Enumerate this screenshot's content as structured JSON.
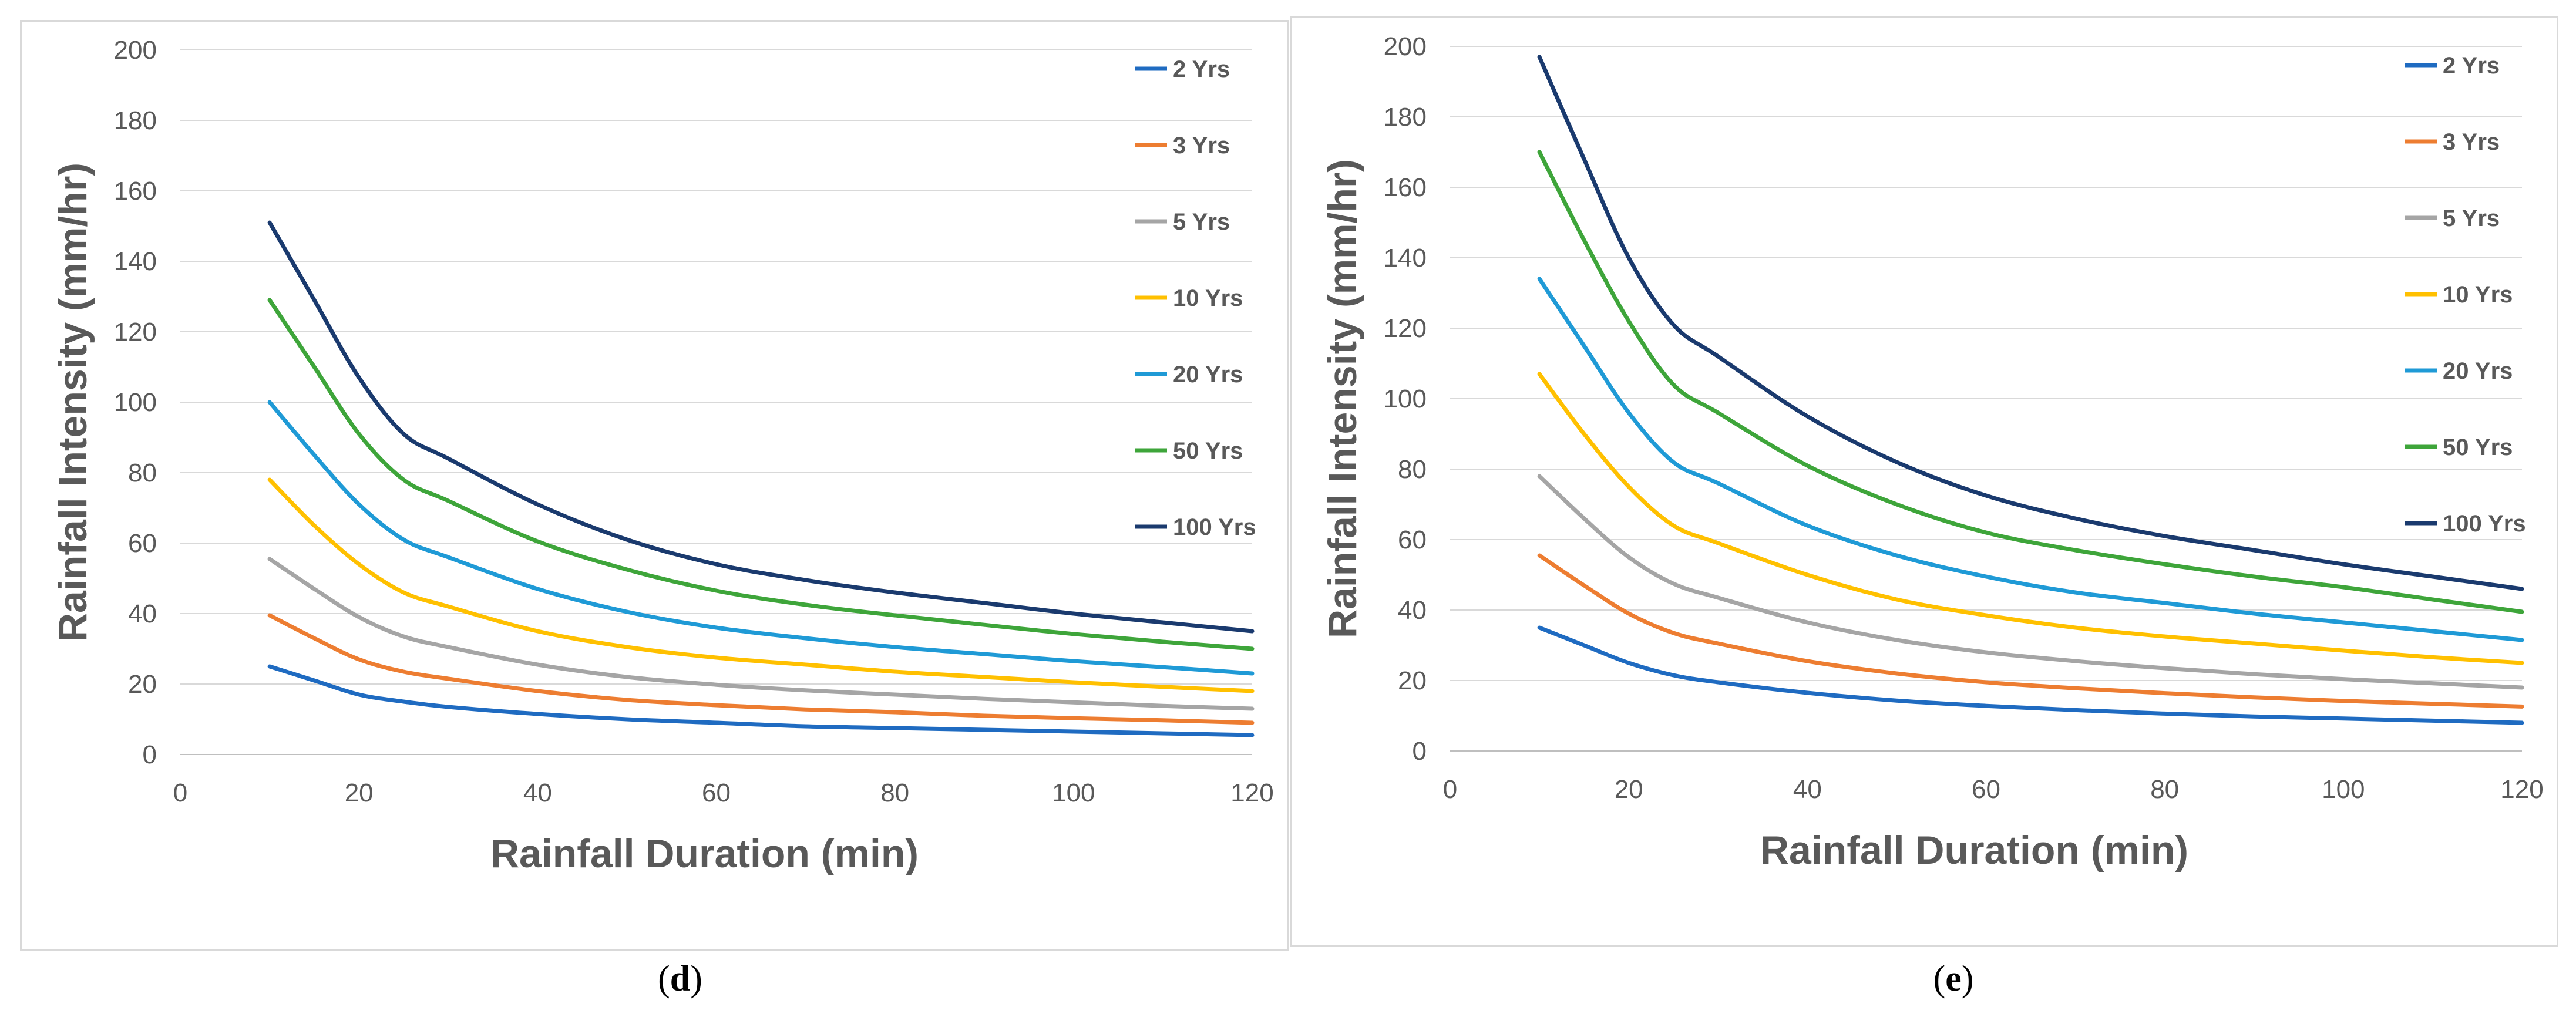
{
  "chart_data": [
    {
      "id": "d",
      "type": "line",
      "caption": "d",
      "title": "",
      "xlabel": "Rainfall Duration (min)",
      "ylabel": "Rainfall Intensity (mm/hr)",
      "xlim": [
        0,
        120
      ],
      "ylim": [
        0,
        200
      ],
      "xticks": [
        0,
        20,
        40,
        60,
        80,
        100,
        120
      ],
      "yticks": [
        0,
        20,
        40,
        60,
        80,
        100,
        120,
        140,
        160,
        180,
        200
      ],
      "grid": "horizontal",
      "legend": "top-right",
      "x": [
        10,
        15,
        20,
        25,
        30,
        40,
        50,
        60,
        70,
        80,
        90,
        100,
        110,
        120
      ],
      "series": [
        {
          "name": "2 Yrs",
          "color": "#1f6bc1",
          "values": [
            25,
            21,
            17,
            15,
            13.5,
            11.5,
            10,
            9,
            8,
            7.5,
            7,
            6.5,
            6,
            5.5
          ]
        },
        {
          "name": "3 Yrs",
          "color": "#ed7d31",
          "values": [
            39.5,
            33,
            27,
            23.5,
            21.5,
            18,
            15.5,
            14,
            12.8,
            12,
            11,
            10.3,
            9.7,
            9
          ]
        },
        {
          "name": "5 Yrs",
          "color": "#a5a5a5",
          "values": [
            55.5,
            47,
            39,
            33.5,
            30.5,
            25.5,
            22,
            19.8,
            18.2,
            17,
            15.8,
            14.8,
            13.8,
            13
          ]
        },
        {
          "name": "10 Yrs",
          "color": "#ffc000",
          "values": [
            78,
            65,
            54,
            46,
            42,
            35,
            30.5,
            27.5,
            25.5,
            23.5,
            22,
            20.5,
            19.2,
            18
          ]
        },
        {
          "name": "20 Yrs",
          "color": "#1f9ad6",
          "values": [
            100,
            85,
            71,
            61,
            56,
            47,
            40.5,
            36,
            33,
            30.5,
            28.5,
            26.5,
            24.8,
            23
          ]
        },
        {
          "name": "50 Yrs",
          "color": "#3ea53a",
          "values": [
            129,
            110,
            91,
            78,
            72,
            60.5,
            52.5,
            46.5,
            42.5,
            39.5,
            36.8,
            34.2,
            32,
            30
          ]
        },
        {
          "name": "100 Yrs",
          "color": "#1a3a6e",
          "values": [
            151,
            129,
            107,
            91,
            84,
            71,
            61,
            54,
            49.5,
            46,
            43,
            40,
            37.5,
            35
          ]
        }
      ]
    },
    {
      "id": "e",
      "type": "line",
      "caption": "e",
      "title": "",
      "xlabel": "Rainfall Duration (min)",
      "ylabel": "Rainfall Intensity (mm/hr)",
      "xlim": [
        0,
        120
      ],
      "ylim": [
        0,
        200
      ],
      "xticks": [
        0,
        20,
        40,
        60,
        80,
        100,
        120
      ],
      "yticks": [
        0,
        20,
        40,
        60,
        80,
        100,
        120,
        140,
        160,
        180,
        200
      ],
      "grid": "horizontal",
      "legend": "top-right",
      "x": [
        10,
        15,
        20,
        25,
        30,
        40,
        50,
        60,
        70,
        80,
        90,
        100,
        110,
        120
      ],
      "series": [
        {
          "name": "2 Yrs",
          "color": "#1f6bc1",
          "values": [
            35,
            30,
            25,
            21.5,
            19.5,
            16.5,
            14.3,
            12.8,
            11.6,
            10.6,
            9.8,
            9.2,
            8.6,
            8
          ]
        },
        {
          "name": "3 Yrs",
          "color": "#ed7d31",
          "values": [
            55.5,
            47,
            39,
            33.5,
            30.5,
            25.5,
            22,
            19.5,
            17.8,
            16.4,
            15.2,
            14.2,
            13.4,
            12.6
          ]
        },
        {
          "name": "5 Yrs",
          "color": "#a5a5a5",
          "values": [
            78,
            66,
            55,
            47.5,
            43.5,
            36.5,
            31.5,
            28,
            25.5,
            23.5,
            21.8,
            20.4,
            19.2,
            18
          ]
        },
        {
          "name": "10 Yrs",
          "color": "#ffc000",
          "values": [
            107,
            90,
            75,
            64,
            59,
            50,
            43,
            38.5,
            35,
            32.5,
            30.5,
            28.5,
            26.6,
            25
          ]
        },
        {
          "name": "20 Yrs",
          "color": "#1f9ad6",
          "values": [
            134,
            115,
            96,
            82,
            76,
            64,
            55.5,
            49.5,
            45,
            42,
            39,
            36.5,
            34,
            31.5
          ]
        },
        {
          "name": "50 Yrs",
          "color": "#3ea53a",
          "values": [
            170,
            145,
            122,
            104,
            96,
            81,
            70,
            62,
            57,
            53,
            49.5,
            46.5,
            43,
            39.5
          ]
        },
        {
          "name": "100 Yrs",
          "color": "#1a3a6e",
          "values": [
            197,
            168,
            140,
            121,
            112,
            95,
            82,
            72.5,
            66,
            61,
            57,
            53,
            49.5,
            46
          ]
        }
      ]
    }
  ]
}
